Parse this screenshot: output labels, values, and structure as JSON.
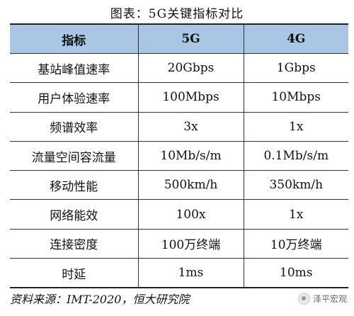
{
  "title": "图表：5G关键指标对比",
  "table": {
    "headers": [
      "指标",
      "5G",
      "4G"
    ],
    "rows": [
      [
        "基站峰值速率",
        "20Gbps",
        "1Gbps"
      ],
      [
        "用户体验速率",
        "100Mbps",
        "10Mbps"
      ],
      [
        "频谱效率",
        "3x",
        "1x"
      ],
      [
        "流量空间容流量",
        "10Mb/s/m",
        "0.1Mb/s/m"
      ],
      [
        "移动性能",
        "500km/h",
        "350km/h"
      ],
      [
        "网络能效",
        "100x",
        "1x"
      ],
      [
        "连接密度",
        "100万终端",
        "10万终端"
      ],
      [
        "时延",
        "1ms",
        "10ms"
      ]
    ]
  },
  "source": "资料来源：IMT-2020，恒大研究院",
  "watermark": {
    "text": "泽平宏观",
    "icon": "wechat-avatar-icon",
    "header_color": "#a9c6e4"
  }
}
